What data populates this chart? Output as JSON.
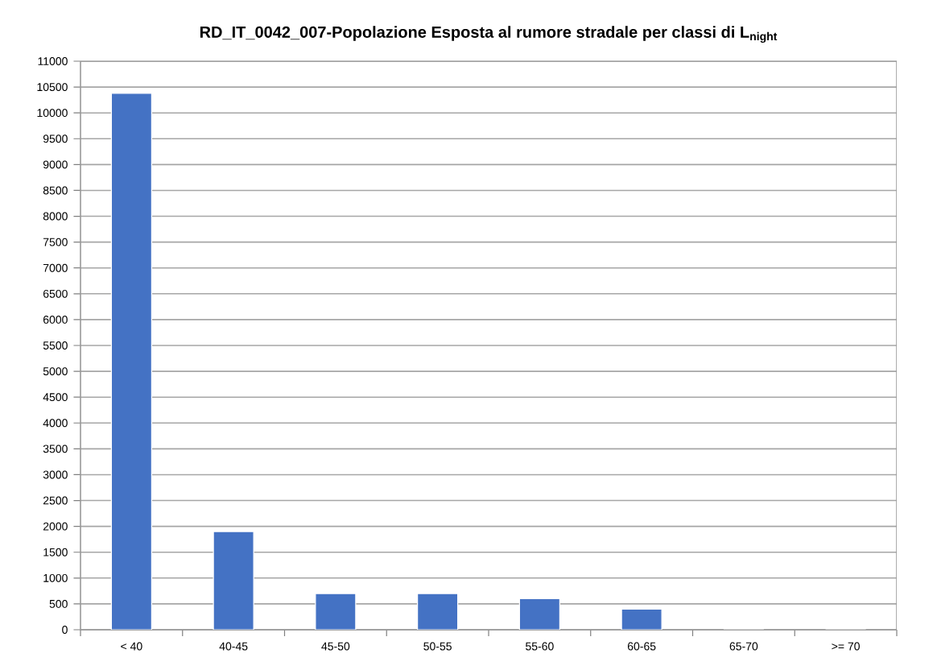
{
  "chart_data": {
    "type": "bar",
    "title": "RD_IT_0042_007-Popolazione Esposta al rumore stradale per classi di L$_{night}$",
    "categories": [
      "< 40",
      "40-45",
      "45-50",
      "50-55",
      "55-60",
      "60-65",
      "65-70",
      ">= 70"
    ],
    "values": [
      10380,
      1900,
      700,
      700,
      600,
      400,
      0,
      0
    ],
    "color": "#4472c4",
    "ylim": [
      0,
      11000
    ],
    "yticks": [
      0,
      500,
      1000,
      1500,
      2000,
      2500,
      3000,
      3500,
      4000,
      4500,
      5000,
      5500,
      6000,
      6500,
      7000,
      7500,
      8000,
      8500,
      9000,
      9500,
      10000,
      10500,
      11000
    ],
    "grid": "y"
  }
}
